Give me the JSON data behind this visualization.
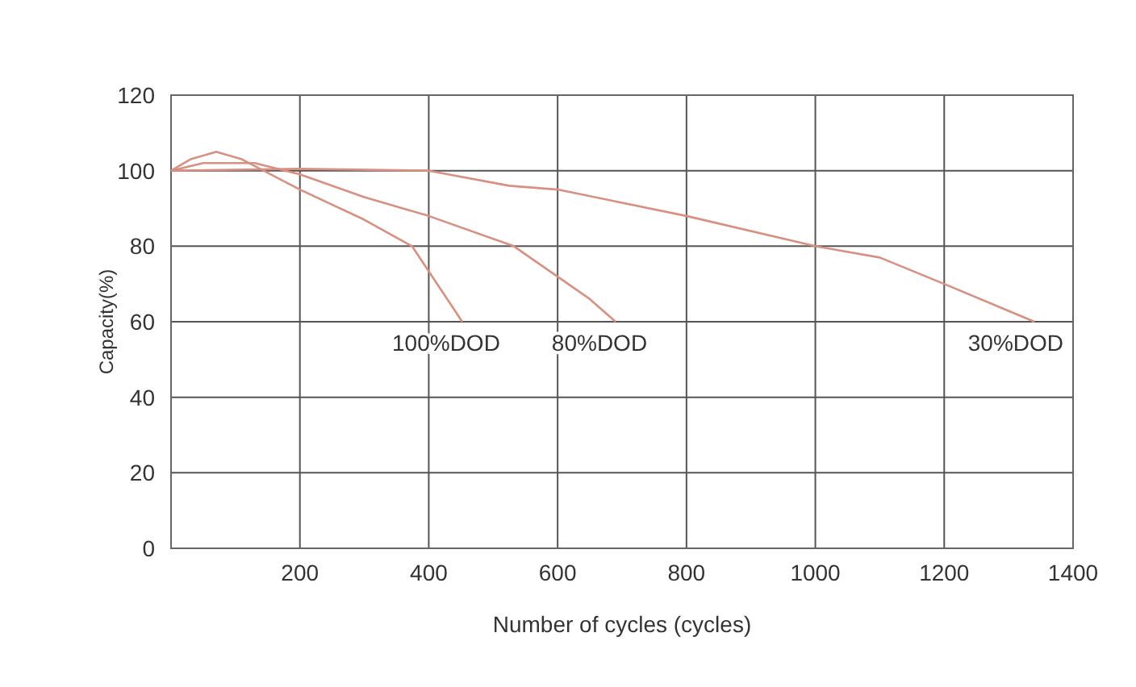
{
  "chart_data": {
    "type": "line",
    "xlabel": "Number of cycles (cycles)",
    "ylabel": "Capacity(%)",
    "xlim": [
      0,
      1400
    ],
    "xticks": [
      200,
      400,
      600,
      800,
      1000,
      1200,
      1400
    ],
    "ylim": [
      0,
      120
    ],
    "yticks": [
      0,
      20,
      40,
      60,
      80,
      100,
      120
    ],
    "grid": true,
    "marker": "none",
    "line_style": "solid",
    "series": [
      {
        "name": "100%DOD",
        "color": "#d89080",
        "x": [
          0,
          30,
          70,
          110,
          200,
          300,
          374,
          452
        ],
        "values": [
          100,
          103,
          105,
          103,
          95,
          87,
          80,
          60
        ]
      },
      {
        "name": "80%DOD",
        "color": "#d89080",
        "x": [
          0,
          50,
          130,
          200,
          300,
          400,
          532,
          650,
          690
        ],
        "values": [
          100,
          102,
          102,
          99,
          93,
          88,
          80,
          66,
          60
        ]
      },
      {
        "name": "30%DOD",
        "color": "#d89080",
        "x": [
          0,
          200,
          400,
          525,
          600,
          800,
          1000,
          1100,
          1200,
          1340
        ],
        "values": [
          100,
          100.5,
          100,
          96,
          95,
          88,
          80,
          77,
          70,
          60
        ]
      }
    ]
  }
}
